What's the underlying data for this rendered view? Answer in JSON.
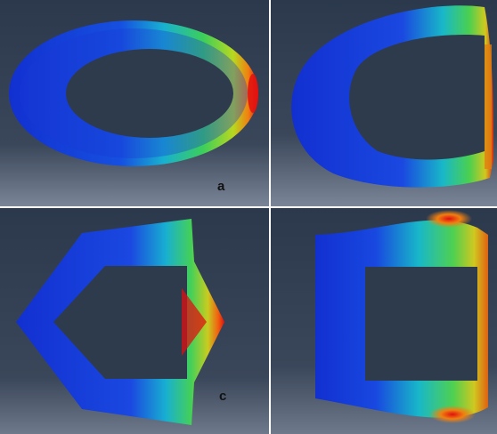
{
  "panels": [
    {
      "id": "a",
      "label": "a",
      "shape": "ellipse"
    },
    {
      "id": "b",
      "label": "",
      "shape": "tapered-ring"
    },
    {
      "id": "c",
      "label": "c",
      "shape": "pentagon"
    },
    {
      "id": "d",
      "label": "",
      "shape": "square"
    }
  ],
  "colors": {
    "background_top": "#2d3a4e",
    "background_bottom": "#707c8e",
    "low_stress": "#1030d8",
    "mid_stress": "#2ec85a",
    "high_stress": "#e01010",
    "hole": "#2e3b4d",
    "divider": "#ffffff"
  }
}
